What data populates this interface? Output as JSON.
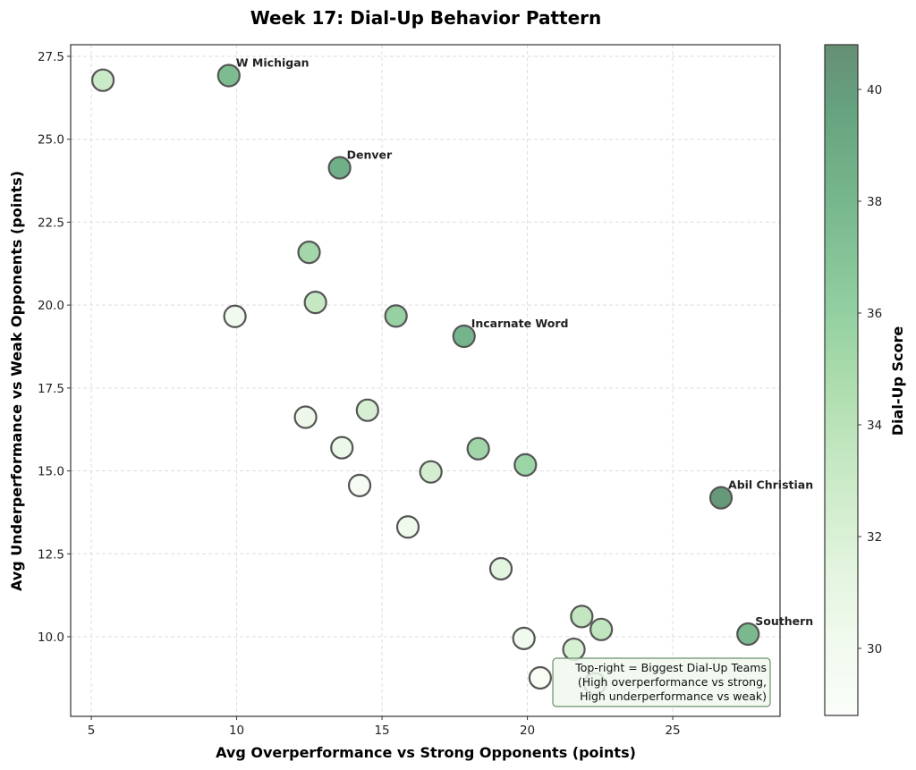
{
  "chart_data": {
    "type": "scatter",
    "title": "Week 17: Dial-Up Behavior Pattern",
    "xlabel": "Avg Overperformance vs Strong Opponents (points)",
    "ylabel": "Avg Underperformance vs Weak Opponents (points)",
    "xlim": [
      4.29,
      28.69
    ],
    "ylim": [
      7.6,
      27.85
    ],
    "xticks": [
      5,
      10,
      15,
      20,
      25
    ],
    "xtick_labels": [
      "5",
      "10",
      "15",
      "20",
      "25"
    ],
    "yticks": [
      10.0,
      12.5,
      15.0,
      17.5,
      20.0,
      22.5,
      25.0,
      27.5
    ],
    "ytick_labels": [
      "10.0",
      "12.5",
      "15.0",
      "17.5",
      "20.0",
      "22.5",
      "25.0",
      "27.5"
    ],
    "grid": true,
    "colorbar": {
      "label": "Dial-Up Score",
      "colormap": "Greens",
      "range": [
        28.8,
        40.8
      ],
      "ticks": [
        30,
        32,
        34,
        36,
        38,
        40
      ],
      "tick_labels": [
        "30",
        "32",
        "34",
        "36",
        "38",
        "40"
      ]
    },
    "points": [
      {
        "x": 5.4,
        "y": 26.78,
        "score": 33.0,
        "label": ""
      },
      {
        "x": 9.73,
        "y": 26.92,
        "score": 37.6,
        "label": "W Michigan"
      },
      {
        "x": 13.54,
        "y": 24.14,
        "score": 38.6,
        "label": "Denver"
      },
      {
        "x": 12.49,
        "y": 21.59,
        "score": 35.2,
        "label": ""
      },
      {
        "x": 12.71,
        "y": 20.08,
        "score": 33.4,
        "label": ""
      },
      {
        "x": 9.94,
        "y": 19.66,
        "score": 30.2,
        "label": ""
      },
      {
        "x": 15.48,
        "y": 19.67,
        "score": 35.8,
        "label": ""
      },
      {
        "x": 17.82,
        "y": 19.06,
        "score": 38.2,
        "label": "Incarnate Word"
      },
      {
        "x": 12.37,
        "y": 16.62,
        "score": 30.5,
        "label": ""
      },
      {
        "x": 14.5,
        "y": 16.83,
        "score": 32.3,
        "label": ""
      },
      {
        "x": 13.62,
        "y": 15.7,
        "score": 30.6,
        "label": ""
      },
      {
        "x": 14.23,
        "y": 14.56,
        "score": 29.4,
        "label": ""
      },
      {
        "x": 16.68,
        "y": 14.97,
        "score": 32.5,
        "label": ""
      },
      {
        "x": 18.31,
        "y": 15.67,
        "score": 35.3,
        "label": ""
      },
      {
        "x": 19.93,
        "y": 15.18,
        "score": 35.6,
        "label": ""
      },
      {
        "x": 15.89,
        "y": 13.31,
        "score": 30.3,
        "label": ""
      },
      {
        "x": 19.09,
        "y": 12.05,
        "score": 31.3,
        "label": ""
      },
      {
        "x": 26.66,
        "y": 14.19,
        "score": 40.2,
        "label": "Abil Christian"
      },
      {
        "x": 19.88,
        "y": 9.95,
        "score": 30.1,
        "label": ""
      },
      {
        "x": 21.87,
        "y": 10.61,
        "score": 33.5,
        "label": ""
      },
      {
        "x": 22.54,
        "y": 10.22,
        "score": 33.6,
        "label": ""
      },
      {
        "x": 21.6,
        "y": 9.62,
        "score": 32.2,
        "label": ""
      },
      {
        "x": 20.44,
        "y": 8.76,
        "score": 29.3,
        "label": ""
      },
      {
        "x": 22.32,
        "y": 8.58,
        "score": 31.0,
        "label": ""
      },
      {
        "x": 27.59,
        "y": 10.08,
        "score": 37.9,
        "label": "Southern"
      }
    ],
    "annotation": {
      "lines": [
        "Top-right = Biggest Dial-Up Teams",
        "(High overperformance vs strong,",
        "High underperformance vs weak)"
      ],
      "placement": "bottom-right"
    }
  }
}
